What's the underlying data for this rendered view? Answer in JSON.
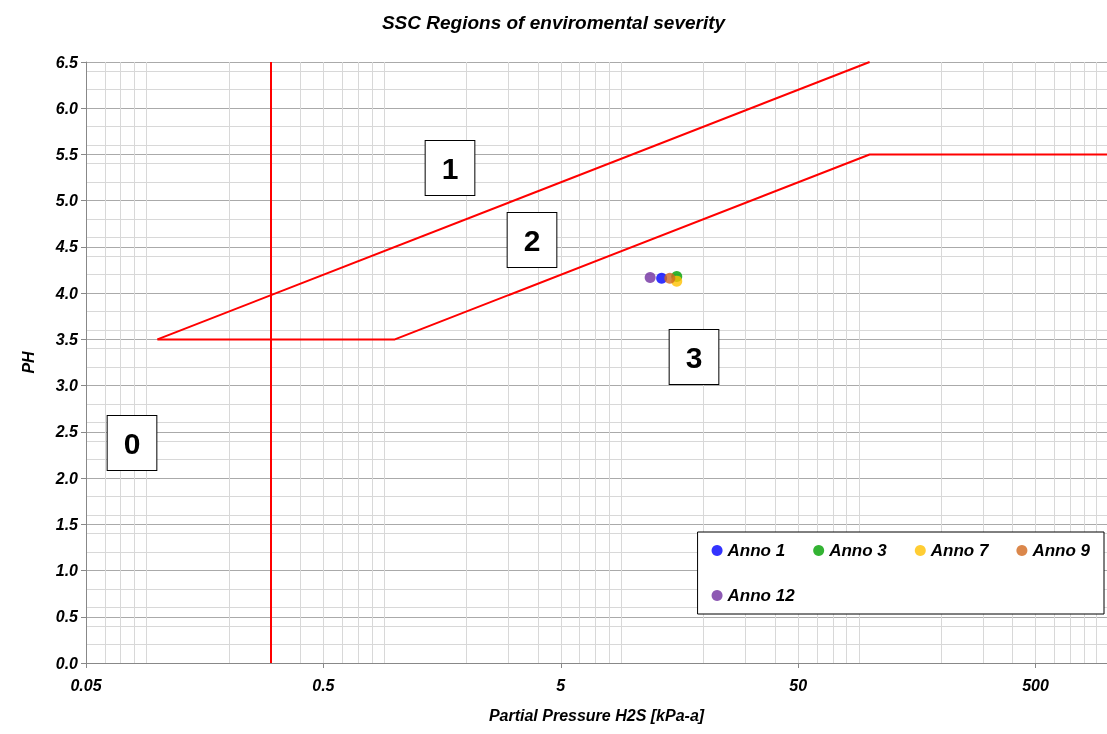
{
  "chart_data": {
    "type": "scatter",
    "title": "SSC Regions of enviromental severity",
    "xlabel": "Partial Pressure H2S [kPa-a]",
    "ylabel": "PH",
    "log": "x",
    "xlim": [
      0.05,
      1000
    ],
    "xticks": [
      0.05,
      0.5,
      5,
      50,
      500
    ],
    "ylim": [
      0,
      6.5
    ],
    "yticks": [
      {
        "value": 0,
        "label": "0.0"
      },
      0.5,
      {
        "value": 1,
        "label": "1.0"
      },
      1.5,
      {
        "value": 2,
        "label": "2.0"
      },
      2.5,
      {
        "value": 3,
        "label": "3.0"
      },
      3.5,
      {
        "value": 4,
        "label": "4.0"
      },
      4.5,
      {
        "value": 5,
        "label": "5.0"
      },
      5.5,
      {
        "value": 6,
        "label": "6.0"
      },
      6.5
    ],
    "grid": true,
    "legend": "bottom right",
    "marker": "circle",
    "series": [
      {
        "type": "line",
        "color": "#ff0000",
        "x": [
          0.1,
          100
        ],
        "values": [
          3.5,
          6.5
        ],
        "marker": "none"
      },
      {
        "type": "line",
        "color": "#ff0000",
        "x": [
          0.1,
          1,
          100,
          1000
        ],
        "values": [
          3.5,
          3.5,
          5.5,
          5.5
        ],
        "marker": "none"
      },
      {
        "name": "Anno 1",
        "color": "#0000ff",
        "x": [
          13.3
        ],
        "values": [
          4.16
        ]
      },
      {
        "name": "Anno 3",
        "color": "#00a000",
        "x": [
          15.4
        ],
        "values": [
          4.18
        ]
      },
      {
        "name": "Anno 7",
        "color": "#ffc000",
        "x": [
          15.4
        ],
        "values": [
          4.13
        ]
      },
      {
        "name": "Anno 9",
        "color": "#d2691e",
        "x": [
          14.4
        ],
        "values": [
          4.16
        ]
      },
      {
        "name": "Anno 12",
        "color": "#7030a0",
        "x": [
          11.9
        ],
        "values": [
          4.17
        ]
      }
    ],
    "ref_lines": [
      {
        "axis": "x",
        "value": 0.3,
        "color": "#ff0000"
      }
    ],
    "annotations": [
      "0",
      "1",
      "2",
      "3"
    ]
  }
}
